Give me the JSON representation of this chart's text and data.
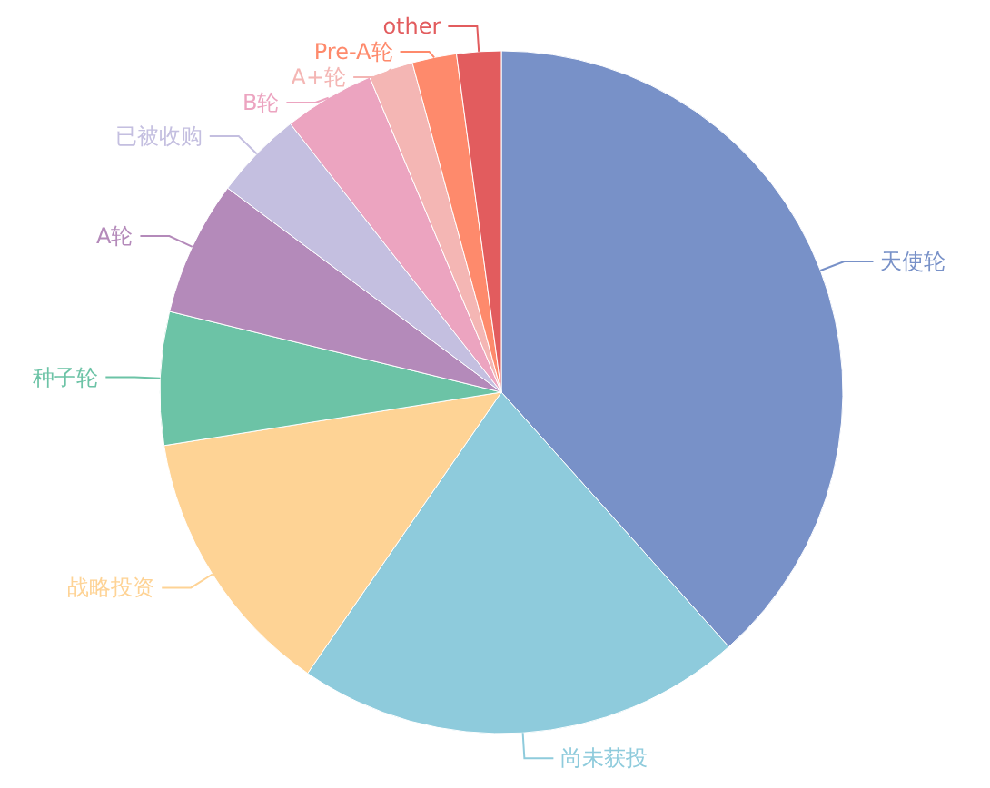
{
  "chart_data": {
    "type": "pie",
    "categories": [
      "天使轮",
      "尚未获投",
      "战略投资",
      "种子轮",
      "A轮",
      "已被收购",
      "B轮",
      "A+轮",
      "Pre-A轮",
      "other"
    ],
    "values": [
      38.4,
      21.2,
      12.9,
      6.3,
      6.4,
      4.2,
      4.3,
      2.1,
      2.1,
      2.1
    ],
    "colors": [
      "#7891c8",
      "#8ecbdc",
      "#fed395",
      "#6cc3a6",
      "#b48aba",
      "#c4bfe0",
      "#eca4c0",
      "#f4b6b4",
      "#fe8a6c",
      "#e25c5e"
    ]
  }
}
